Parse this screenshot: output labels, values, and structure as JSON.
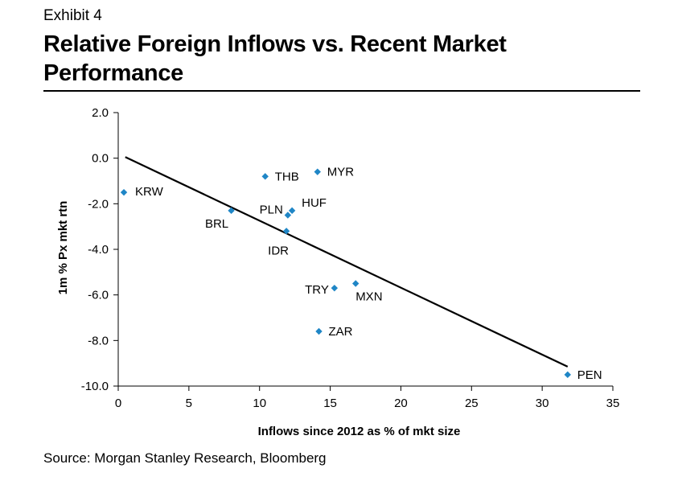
{
  "exhibit": "Exhibit 4",
  "title_line1": "Relative Foreign Inflows vs. Recent Market",
  "title_line2": "Performance",
  "source": "Source: Morgan Stanley Research, Bloomberg",
  "chart_data": {
    "type": "scatter",
    "xlabel": "Inflows since 2012 as % of mkt size",
    "ylabel": "1m % Px mkt rtn",
    "xlim": [
      0,
      35
    ],
    "ylim": [
      -10.0,
      2.0
    ],
    "x_ticks": [
      "0",
      "5",
      "10",
      "15",
      "20",
      "25",
      "30",
      "35"
    ],
    "y_ticks": [
      "2.0",
      "0.0",
      "-2.0",
      "-4.0",
      "-6.0",
      "-8.0",
      "-10.0"
    ],
    "marker_color": "#1f86c6",
    "points": [
      {
        "label": "KRW",
        "x": 0.4,
        "y": -1.5
      },
      {
        "label": "BRL",
        "x": 8.0,
        "y": -2.3
      },
      {
        "label": "THB",
        "x": 10.4,
        "y": -0.8
      },
      {
        "label": "MYR",
        "x": 14.1,
        "y": -0.6
      },
      {
        "label": "PLN",
        "x": 12.0,
        "y": -2.5
      },
      {
        "label": "HUF",
        "x": 12.3,
        "y": -2.3
      },
      {
        "label": "IDR",
        "x": 11.9,
        "y": -3.2
      },
      {
        "label": "TRY",
        "x": 15.3,
        "y": -5.7
      },
      {
        "label": "MXN",
        "x": 16.8,
        "y": -5.5
      },
      {
        "label": "ZAR",
        "x": 14.2,
        "y": -7.6
      },
      {
        "label": "PEN",
        "x": 31.8,
        "y": -9.5
      }
    ],
    "trendline": {
      "x": [
        0.5,
        31.8
      ],
      "y": [
        0.05,
        -9.15
      ]
    },
    "grid": false,
    "legend": "none"
  }
}
